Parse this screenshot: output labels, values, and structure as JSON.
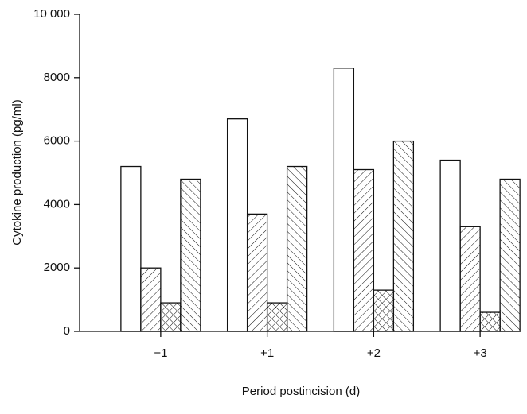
{
  "chart_data": {
    "type": "bar",
    "x_label": "Period postincision (d)",
    "y_label": "Cytokine production (pg/ml)",
    "categories": [
      "−1",
      "+1",
      "+2",
      "+3"
    ],
    "series": [
      {
        "color": "#ffffff",
        "pattern": "none",
        "values": [
          5200,
          6700,
          8300,
          5400
        ]
      },
      {
        "color": "#ffffff",
        "pattern": "diagonal",
        "values": [
          2000,
          3700,
          5100,
          3300
        ]
      },
      {
        "color": "#ffffff",
        "pattern": "crosshatch",
        "values": [
          900,
          900,
          1300,
          600
        ]
      },
      {
        "color": "#ffffff",
        "pattern": "back-diagonal",
        "values": [
          4800,
          5200,
          6000,
          4800
        ]
      }
    ],
    "ylim": [
      0,
      10000
    ],
    "yticks": [
      0,
      2000,
      4000,
      6000,
      8000,
      {
        "value": 10000,
        "label": "10 000"
      }
    ]
  }
}
